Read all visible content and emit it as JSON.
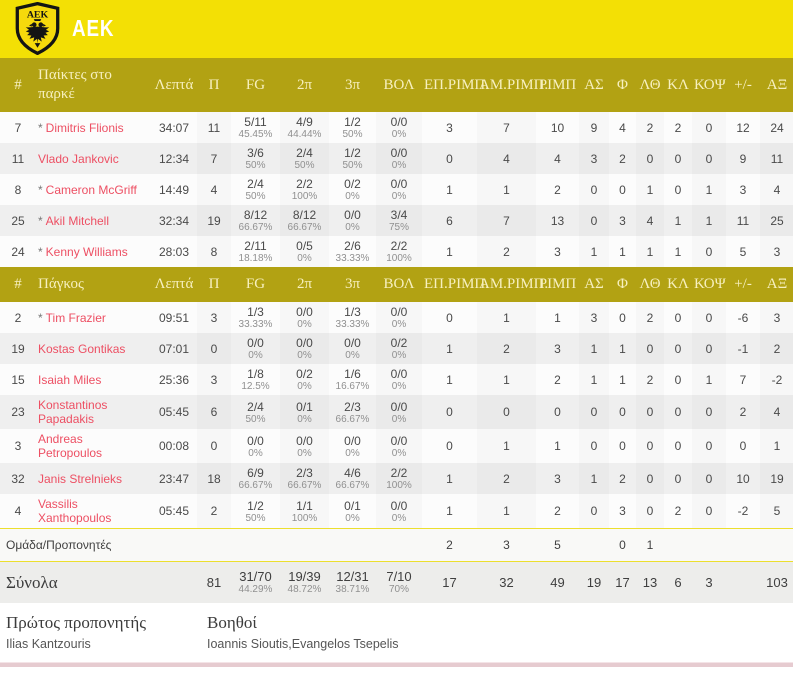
{
  "team": {
    "name": "AEK"
  },
  "colors": {
    "band_yellow": "#f3e005",
    "header_olive": "#b2a213",
    "header_text": "#f7f0bf",
    "player_name_red": "#ed4f63",
    "row_alt_gray": "#efefef",
    "divider_pink": "#e6cbd0"
  },
  "columns": {
    "num": "#",
    "on_court_label": "Παίκτες στο παρκέ",
    "bench_label": "Πάγκος",
    "min": "Λεπτά",
    "pts": "Π",
    "shooting": [
      "FG",
      "2π",
      "3π",
      "ΒΟΛ"
    ],
    "stats": [
      "ΕΠ.ΡΙΜΠ.",
      "ΑΜ.ΡΙΜΠ.",
      "ΡΙΜΠ",
      "ΑΣ",
      "Φ",
      "ΛΘ",
      "ΚΛ",
      "ΚΟΨ",
      "+/-",
      "ΑΞ"
    ]
  },
  "on_court": [
    {
      "num": "7",
      "starter": true,
      "name": "Dimitris Flionis",
      "min": "34:07",
      "pts": "11",
      "shooting": [
        [
          "5/11",
          "45.45%"
        ],
        [
          "4/9",
          "44.44%"
        ],
        [
          "1/2",
          "50%"
        ],
        [
          "0/0",
          "0%"
        ]
      ],
      "stats": [
        "3",
        "7",
        "10",
        "9",
        "4",
        "2",
        "2",
        "0",
        "12",
        "24"
      ]
    },
    {
      "num": "11",
      "starter": false,
      "name": "Vlado Jankovic",
      "min": "12:34",
      "pts": "7",
      "shooting": [
        [
          "3/6",
          "50%"
        ],
        [
          "2/4",
          "50%"
        ],
        [
          "1/2",
          "50%"
        ],
        [
          "0/0",
          "0%"
        ]
      ],
      "stats": [
        "0",
        "4",
        "4",
        "3",
        "2",
        "0",
        "0",
        "0",
        "9",
        "11"
      ]
    },
    {
      "num": "8",
      "starter": true,
      "name": "Cameron McGriff",
      "min": "14:49",
      "pts": "4",
      "shooting": [
        [
          "2/4",
          "50%"
        ],
        [
          "2/2",
          "100%"
        ],
        [
          "0/2",
          "0%"
        ],
        [
          "0/0",
          "0%"
        ]
      ],
      "stats": [
        "1",
        "1",
        "2",
        "0",
        "0",
        "1",
        "0",
        "1",
        "3",
        "4"
      ]
    },
    {
      "num": "25",
      "starter": true,
      "name": "Akil Mitchell",
      "min": "32:34",
      "pts": "19",
      "shooting": [
        [
          "8/12",
          "66.67%"
        ],
        [
          "8/12",
          "66.67%"
        ],
        [
          "0/0",
          "0%"
        ],
        [
          "3/4",
          "75%"
        ]
      ],
      "stats": [
        "6",
        "7",
        "13",
        "0",
        "3",
        "4",
        "1",
        "1",
        "11",
        "25"
      ]
    },
    {
      "num": "24",
      "starter": true,
      "name": "Kenny Williams",
      "min": "28:03",
      "pts": "8",
      "shooting": [
        [
          "2/11",
          "18.18%"
        ],
        [
          "0/5",
          "0%"
        ],
        [
          "2/6",
          "33.33%"
        ],
        [
          "2/2",
          "100%"
        ]
      ],
      "stats": [
        "1",
        "2",
        "3",
        "1",
        "1",
        "1",
        "1",
        "0",
        "5",
        "3"
      ]
    }
  ],
  "bench": [
    {
      "num": "2",
      "starter": true,
      "name": "Tim Frazier",
      "min": "09:51",
      "pts": "3",
      "shooting": [
        [
          "1/3",
          "33.33%"
        ],
        [
          "0/0",
          "0%"
        ],
        [
          "1/3",
          "33.33%"
        ],
        [
          "0/0",
          "0%"
        ]
      ],
      "stats": [
        "0",
        "1",
        "1",
        "3",
        "0",
        "2",
        "0",
        "0",
        "-6",
        "3"
      ]
    },
    {
      "num": "19",
      "starter": false,
      "name": "Kostas Gontikas",
      "min": "07:01",
      "pts": "0",
      "shooting": [
        [
          "0/0",
          "0%"
        ],
        [
          "0/0",
          "0%"
        ],
        [
          "0/0",
          "0%"
        ],
        [
          "0/2",
          "0%"
        ]
      ],
      "stats": [
        "1",
        "2",
        "3",
        "1",
        "1",
        "0",
        "0",
        "0",
        "-1",
        "2"
      ]
    },
    {
      "num": "15",
      "starter": false,
      "name": "Isaiah Miles",
      "min": "25:36",
      "pts": "3",
      "shooting": [
        [
          "1/8",
          "12.5%"
        ],
        [
          "0/2",
          "0%"
        ],
        [
          "1/6",
          "16.67%"
        ],
        [
          "0/0",
          "0%"
        ]
      ],
      "stats": [
        "1",
        "1",
        "2",
        "1",
        "1",
        "2",
        "0",
        "1",
        "7",
        "-2"
      ]
    },
    {
      "num": "23",
      "starter": false,
      "name": "Konstantinos Papadakis",
      "min": "05:45",
      "pts": "6",
      "shooting": [
        [
          "2/4",
          "50%"
        ],
        [
          "0/1",
          "0%"
        ],
        [
          "2/3",
          "66.67%"
        ],
        [
          "0/0",
          "0%"
        ]
      ],
      "stats": [
        "0",
        "0",
        "0",
        "0",
        "0",
        "0",
        "0",
        "0",
        "2",
        "4"
      ]
    },
    {
      "num": "3",
      "starter": false,
      "name": "Andreas Petropoulos",
      "min": "00:08",
      "pts": "0",
      "shooting": [
        [
          "0/0",
          "0%"
        ],
        [
          "0/0",
          "0%"
        ],
        [
          "0/0",
          "0%"
        ],
        [
          "0/0",
          "0%"
        ]
      ],
      "stats": [
        "0",
        "1",
        "1",
        "0",
        "0",
        "0",
        "0",
        "0",
        "0",
        "1"
      ]
    },
    {
      "num": "32",
      "starter": false,
      "name": "Janis Strelnieks",
      "min": "23:47",
      "pts": "18",
      "shooting": [
        [
          "6/9",
          "66.67%"
        ],
        [
          "2/3",
          "66.67%"
        ],
        [
          "4/6",
          "66.67%"
        ],
        [
          "2/2",
          "100%"
        ]
      ],
      "stats": [
        "1",
        "2",
        "3",
        "1",
        "2",
        "0",
        "0",
        "0",
        "10",
        "19"
      ]
    },
    {
      "num": "4",
      "starter": false,
      "name": "Vassilis Xanthopoulos",
      "min": "05:45",
      "pts": "2",
      "shooting": [
        [
          "1/2",
          "50%"
        ],
        [
          "1/1",
          "100%"
        ],
        [
          "0/1",
          "0%"
        ],
        [
          "0/0",
          "0%"
        ]
      ],
      "stats": [
        "1",
        "1",
        "2",
        "0",
        "3",
        "0",
        "2",
        "0",
        "-2",
        "5"
      ]
    }
  ],
  "team_row": {
    "label": "Ομάδα/Προπονητές",
    "stats": [
      "2",
      "3",
      "5",
      "",
      "0",
      "1",
      "",
      "",
      "",
      ""
    ]
  },
  "totals": {
    "label": "Σύνολα",
    "pts": "81",
    "shooting": [
      [
        "31/70",
        "44.29%"
      ],
      [
        "19/39",
        "48.72%"
      ],
      [
        "12/31",
        "38.71%"
      ],
      [
        "7/10",
        "70%"
      ]
    ],
    "stats": [
      "17",
      "32",
      "49",
      "19",
      "17",
      "13",
      "6",
      "3",
      "",
      "103"
    ]
  },
  "footer": {
    "head_coach_label": "Πρώτος προπονητής",
    "assistants_label": "Βοηθοί",
    "head_coach": "Ilias Kantzouris",
    "assistants": "Ioannis Sioutis,Evangelos Tsepelis"
  }
}
